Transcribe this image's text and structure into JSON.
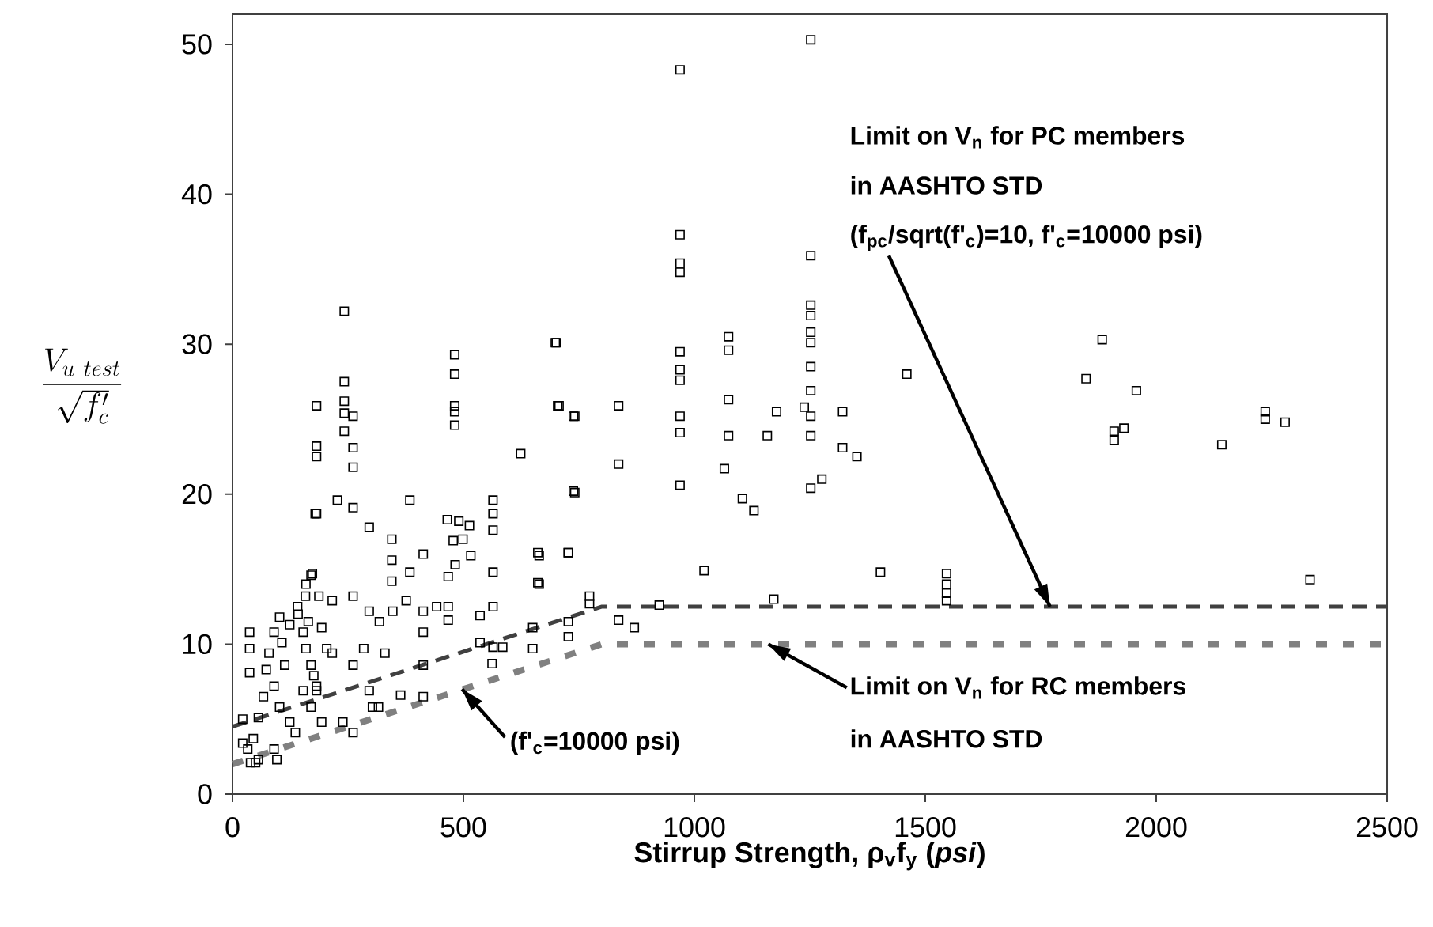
{
  "chart_data": {
    "type": "scatter",
    "xlabel": "Stirrup Strength, ρ$_{v}$f$_{y}$ (*psi*)",
    "ylabel": "\\frac{V_{u\\ test}}{\\sqrt{f'_{c}}}",
    "xlim": [
      0,
      2500
    ],
    "ylim": [
      0,
      52
    ],
    "xticks": [
      0,
      500,
      1000,
      1500,
      2000,
      2500
    ],
    "yticks": [
      0,
      10,
      20,
      30,
      40,
      50
    ],
    "series": [
      {
        "color": "#000000",
        "marker": "square",
        "x": [
          1252,
          969,
          969,
          969,
          969,
          1252,
          701,
          969,
          969,
          969,
          969,
          969,
          969,
          1074,
          1074,
          1074,
          1074,
          1065,
          1252,
          1252,
          1252,
          1252,
          1252,
          1252,
          1238,
          1252,
          1252,
          1252,
          1276,
          1460,
          707,
          741,
          836,
          836,
          741,
          1178,
          1158,
          1321,
          1321,
          1352,
          1104,
          1129,
          1021,
          1403,
          727,
          661,
          661,
          773,
          773,
          924,
          1172,
          836,
          870,
          727,
          1546,
          1546,
          1546,
          1546,
          1883,
          1848,
          1957,
          1909,
          1909,
          1930,
          2142,
          2236,
          2236,
          2279,
          2333,
          242,
          242,
          242,
          242,
          261,
          182,
          242,
          182,
          182,
          261,
          261,
          481,
          481,
          481,
          481,
          481,
          699,
          704,
          738,
          624,
          738,
          182,
          227,
          261,
          384,
          296,
          345,
          345,
          345,
          465,
          490,
          513,
          478,
          499,
          516,
          482,
          564,
          564,
          564,
          564,
          564,
          564,
          664,
          664,
          727,
          650,
          650,
          727,
          536,
          536,
          585,
          562,
          413,
          413,
          413,
          364,
          467,
          467,
          467,
          413,
          413,
          384,
          442,
          316,
          303,
          179,
          173,
          159,
          158,
          141,
          37,
          37,
          37,
          22,
          50,
          102,
          124,
          90,
          107,
          79,
          73,
          113,
          90,
          67,
          102,
          124,
          56,
          45,
          33,
          56,
          90,
          136,
          153,
          159,
          170,
          176,
          153,
          170,
          193,
          182,
          164,
          204,
          187,
          142,
          96,
          22,
          39,
          170,
          216,
          261,
          296,
          216,
          261,
          182,
          239,
          261,
          284,
          330,
          318,
          347,
          376,
          296,
          193
        ],
        "values": [
          50.3,
          48.3,
          37.3,
          35.4,
          34.8,
          35.9,
          30.1,
          29.5,
          28.3,
          27.6,
          25.2,
          24.1,
          20.6,
          30.5,
          29.6,
          26.3,
          23.9,
          21.7,
          32.6,
          31.9,
          30.8,
          30.1,
          28.5,
          26.9,
          25.8,
          25.2,
          23.9,
          20.4,
          21.0,
          28.0,
          25.9,
          25.2,
          25.9,
          22.0,
          20.1,
          25.5,
          23.9,
          25.5,
          23.1,
          22.5,
          19.7,
          18.9,
          14.9,
          14.8,
          16.1,
          16.1,
          14.1,
          13.2,
          12.7,
          12.6,
          13.0,
          11.6,
          11.1,
          11.5,
          14.7,
          14.0,
          13.4,
          12.9,
          30.3,
          27.7,
          26.9,
          24.2,
          23.6,
          24.4,
          23.3,
          25.5,
          25.0,
          24.8,
          14.3,
          32.2,
          27.5,
          26.2,
          25.4,
          25.2,
          25.9,
          24.2,
          23.2,
          22.5,
          23.1,
          21.8,
          29.3,
          28.0,
          25.9,
          25.5,
          24.6,
          30.1,
          25.9,
          25.2,
          22.7,
          20.2,
          18.7,
          19.6,
          19.1,
          19.6,
          17.8,
          17.0,
          15.6,
          14.2,
          18.3,
          18.2,
          17.9,
          16.9,
          17.0,
          15.9,
          15.3,
          19.6,
          18.7,
          17.6,
          14.8,
          12.5,
          9.8,
          15.9,
          14.0,
          16.1,
          11.1,
          9.7,
          10.5,
          11.9,
          10.1,
          9.8,
          8.7,
          10.8,
          8.6,
          6.5,
          6.6,
          14.5,
          12.5,
          11.6,
          16.0,
          12.2,
          14.8,
          12.5,
          5.8,
          5.8,
          18.7,
          14.7,
          14.0,
          13.2,
          12.5,
          10.8,
          9.7,
          8.1,
          5.0,
          2.1,
          11.8,
          11.3,
          10.8,
          10.1,
          9.4,
          8.3,
          8.6,
          7.2,
          6.5,
          5.8,
          4.8,
          5.1,
          3.7,
          3.0,
          2.3,
          3.0,
          4.1,
          10.8,
          9.7,
          8.6,
          7.9,
          6.9,
          5.8,
          4.8,
          7.2,
          11.5,
          9.7,
          13.2,
          12.0,
          2.3,
          3.4,
          2.1,
          14.6,
          12.9,
          13.2,
          12.2,
          9.4,
          8.6,
          6.9,
          4.8,
          4.1,
          9.7,
          9.4,
          11.5,
          12.2,
          12.9,
          6.9,
          11.1
        ]
      },
      {
        "type": "line",
        "color": "#404040",
        "marker": "none",
        "line_style": "dashed",
        "x": [
          0,
          800,
          2500
        ],
        "values": [
          4.5,
          12.5,
          12.5
        ]
      },
      {
        "type": "line",
        "color": "#808080",
        "marker": "none",
        "line_style": "dotted",
        "x": [
          0,
          800,
          2500
        ],
        "values": [
          2,
          10,
          10
        ]
      }
    ],
    "annotations": [
      "Limit on V$_{n}$ for PC members",
      "in AASHTO STD",
      {
        "text": "(f$_{pc}$/sqrt(f'$_{c}$)=10, f'$_{c}$=10000 psi)",
        "x": 1770,
        "y": 12.5
      },
      {
        "text": "Limit on V$_{n}$ for RC members",
        "x": 1160,
        "y": 10
      },
      "in AASHTO STD",
      {
        "text": "(f'$_{c}$=10000 psi)",
        "x": 497,
        "y": 7
      }
    ]
  }
}
